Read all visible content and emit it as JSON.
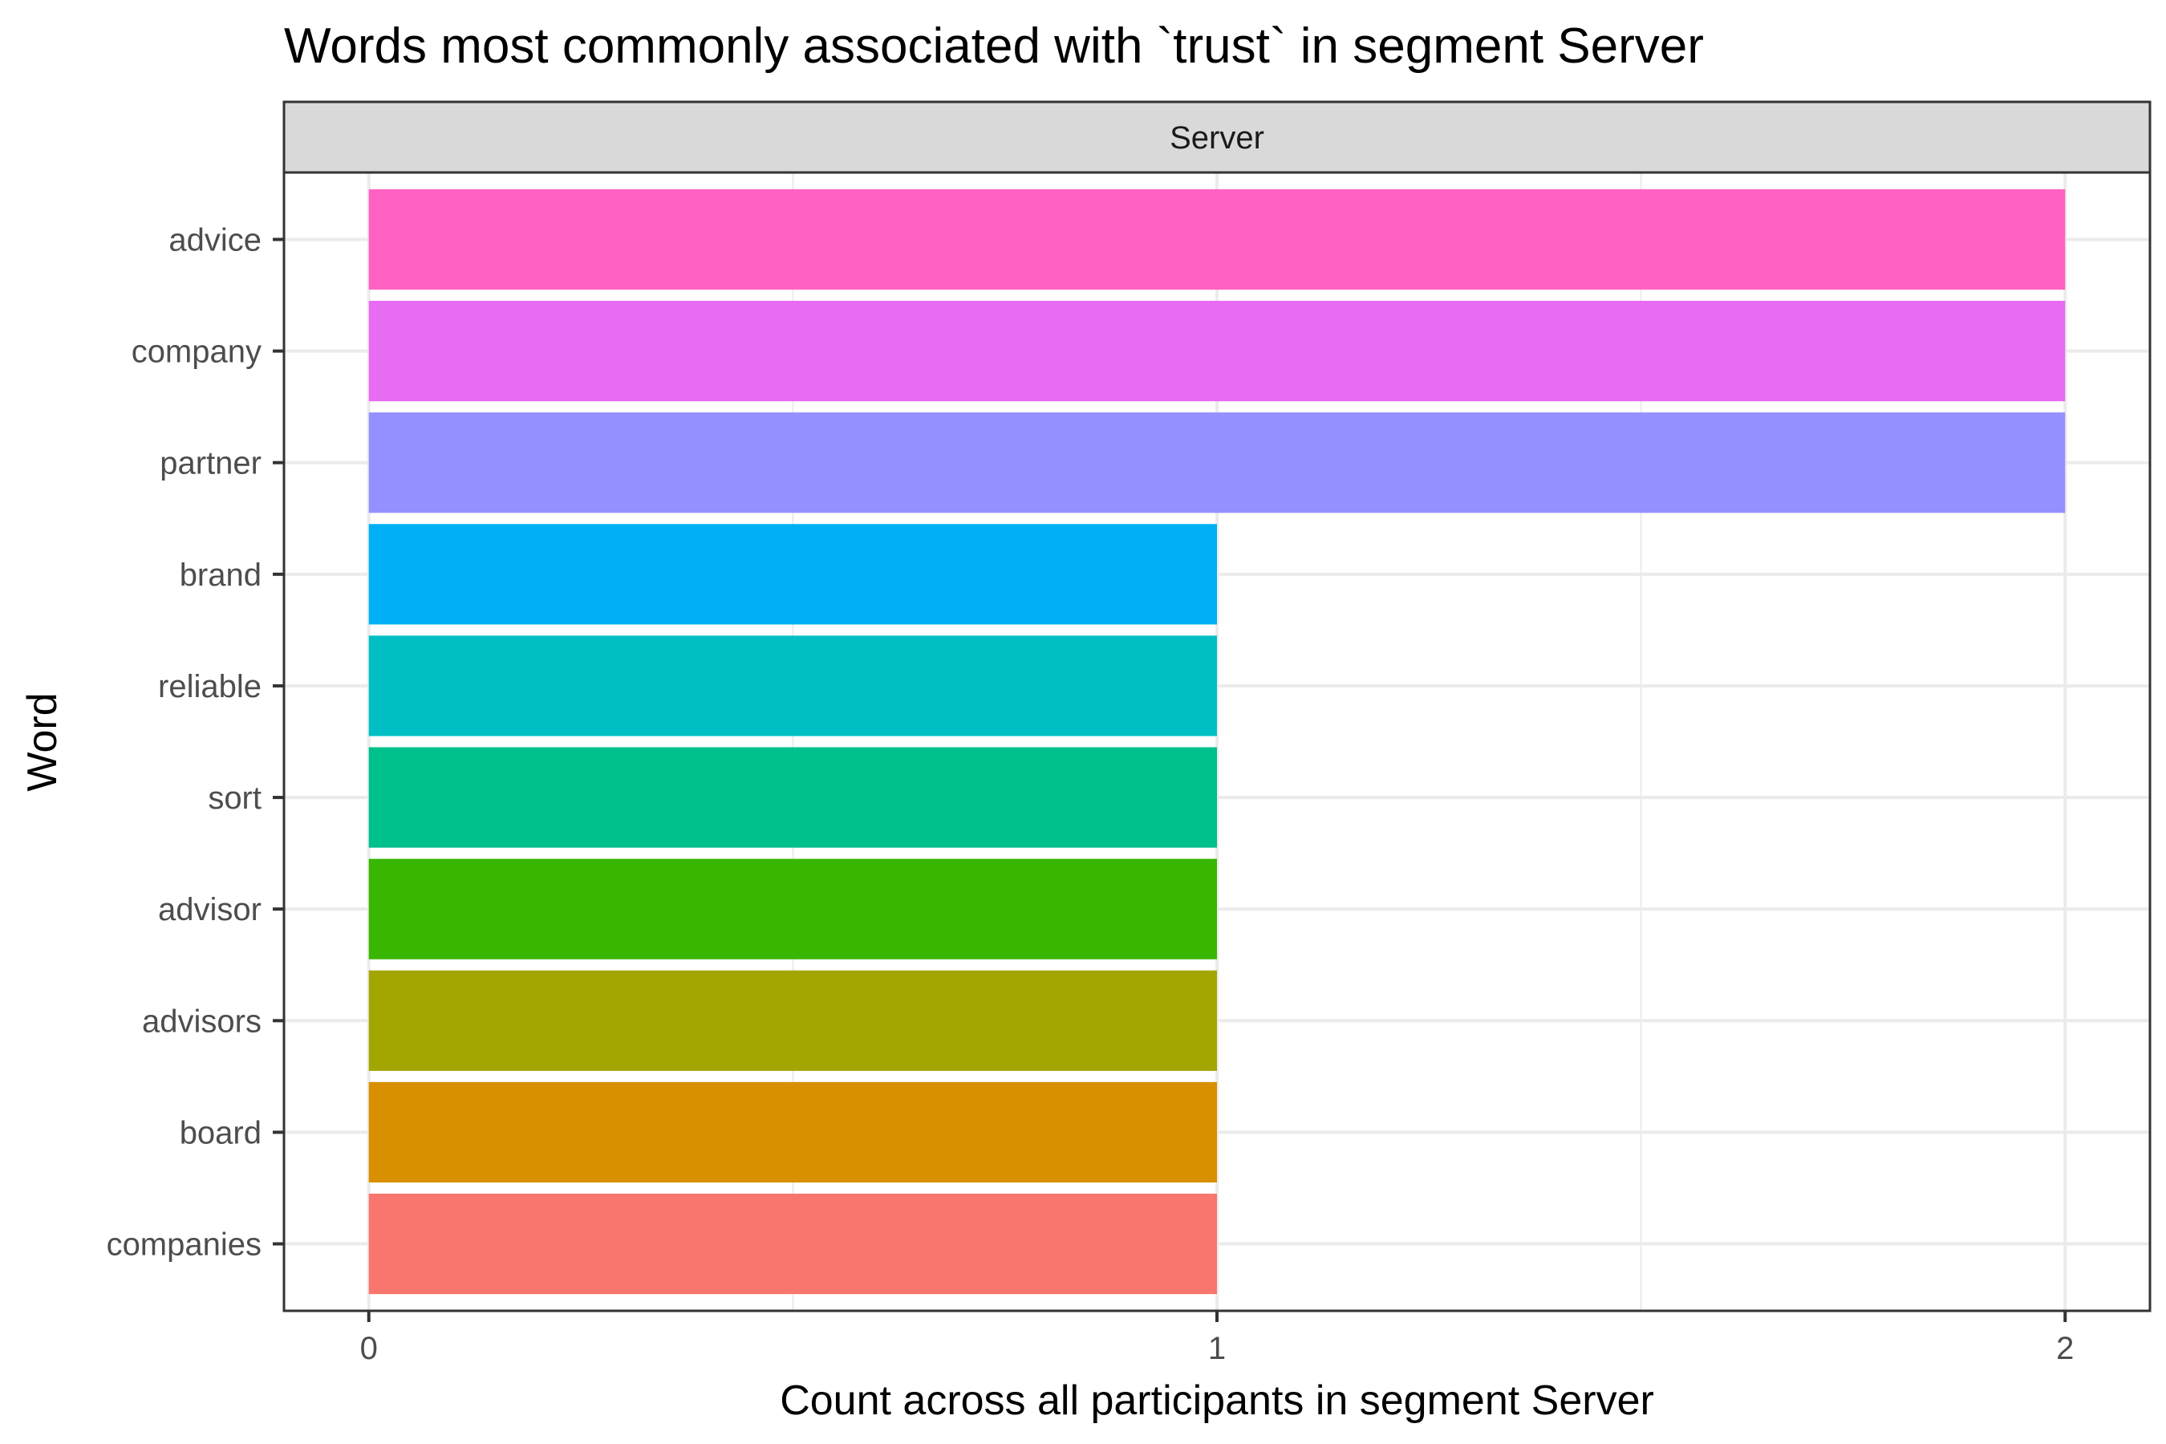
{
  "chart_data": {
    "type": "bar",
    "orientation": "horizontal",
    "title": "Words most commonly associated with `trust` in segment Server",
    "facet_label": "Server",
    "xlabel": "Count across all participants in segment Server",
    "ylabel": "Word",
    "categories": [
      "advice",
      "company",
      "partner",
      "brand",
      "reliable",
      "sort",
      "advisor",
      "advisors",
      "board",
      "companies"
    ],
    "values": [
      2,
      2,
      2,
      1,
      1,
      1,
      1,
      1,
      1,
      1
    ],
    "colors": [
      "#FF61C3",
      "#E76BF3",
      "#9590FF",
      "#00B0F6",
      "#00BFC4",
      "#00C08B",
      "#39B600",
      "#A3A500",
      "#D89000",
      "#F8766D"
    ],
    "xlim": [
      -0.1,
      2.1
    ],
    "xticks": [
      0,
      1,
      2
    ],
    "grid": true,
    "legend": "none"
  }
}
